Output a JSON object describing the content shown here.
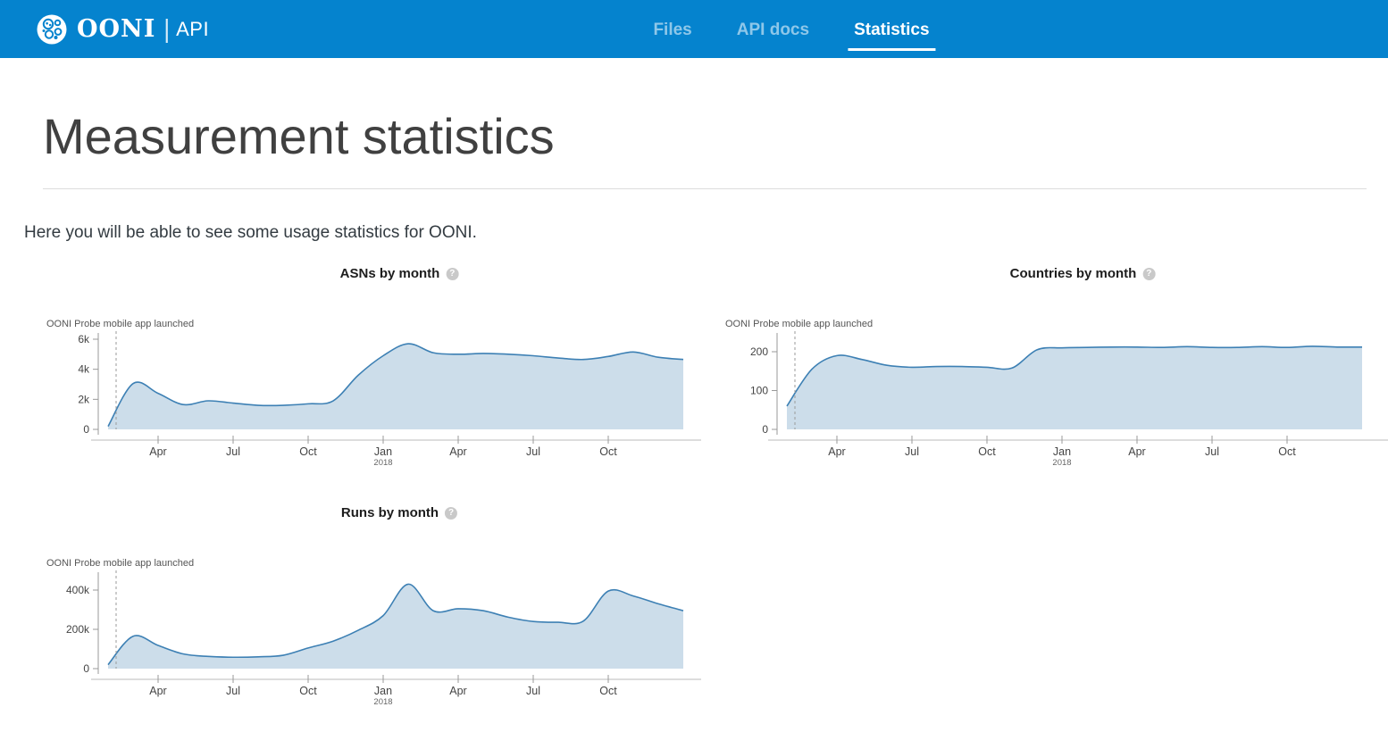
{
  "header": {
    "brand": {
      "name": "OONI",
      "separator": "|",
      "sub": "API"
    },
    "nav": [
      {
        "label": "Files",
        "active": false
      },
      {
        "label": "API docs",
        "active": false
      },
      {
        "label": "Statistics",
        "active": true
      }
    ]
  },
  "page": {
    "title": "Measurement statistics",
    "intro": "Here you will be able to see some usage statistics for OONI."
  },
  "icons": {
    "help_glyph": "?"
  },
  "colors": {
    "header_bg": "#0583CE",
    "chart_line": "#3D80B4",
    "chart_fill": "#CCDDEA",
    "nav_active_underline": "#FFFFFF"
  },
  "chart_data": [
    {
      "id": "asns",
      "type": "area",
      "title": "ASNs by month",
      "annotation": "OONI Probe mobile app launched",
      "x_months": [
        "2017-02",
        "2017-03",
        "2017-04",
        "2017-05",
        "2017-06",
        "2017-07",
        "2017-08",
        "2017-09",
        "2017-10",
        "2017-11",
        "2017-12",
        "2018-01",
        "2018-02",
        "2018-03",
        "2018-04",
        "2018-05",
        "2018-06",
        "2018-07",
        "2018-08",
        "2018-09",
        "2018-10",
        "2018-11",
        "2018-12",
        "2019-01"
      ],
      "values": [
        200,
        3050,
        2400,
        1650,
        1900,
        1750,
        1600,
        1600,
        1700,
        1900,
        3600,
        4900,
        5700,
        5100,
        5000,
        5050,
        5000,
        4900,
        4750,
        4650,
        4850,
        5150,
        4800,
        4650
      ],
      "x_tick_labels": [
        "Apr",
        "Jul",
        "Oct",
        "Jan",
        "Apr",
        "Jul",
        "Oct"
      ],
      "x_year_label": "2018",
      "y_tick_labels": [
        "0",
        "2k",
        "4k",
        "6k"
      ],
      "y_tick_values": [
        0,
        2000,
        4000,
        6000
      ],
      "ylim": [
        0,
        6300
      ],
      "legend": "none",
      "grid": "off"
    },
    {
      "id": "countries",
      "type": "area",
      "title": "Countries by month",
      "annotation": "OONI Probe mobile app launched",
      "x_months": [
        "2017-02",
        "2017-03",
        "2017-04",
        "2017-05",
        "2017-06",
        "2017-07",
        "2017-08",
        "2017-09",
        "2017-10",
        "2017-11",
        "2017-12",
        "2018-01",
        "2018-02",
        "2018-03",
        "2018-04",
        "2018-05",
        "2018-06",
        "2018-07",
        "2018-08",
        "2018-09",
        "2018-10",
        "2018-11",
        "2018-12",
        "2019-01"
      ],
      "values": [
        60,
        155,
        190,
        180,
        165,
        160,
        162,
        162,
        160,
        158,
        205,
        210,
        211,
        212,
        212,
        211,
        213,
        211,
        211,
        213,
        211,
        214,
        212,
        212
      ],
      "x_tick_labels": [
        "Apr",
        "Jul",
        "Oct",
        "Jan",
        "Apr",
        "Jul",
        "Oct"
      ],
      "x_year_label": "2018",
      "y_tick_labels": [
        "0",
        "100",
        "200"
      ],
      "y_tick_values": [
        0,
        100,
        200
      ],
      "ylim": [
        0,
        245
      ],
      "legend": "none",
      "grid": "off"
    },
    {
      "id": "runs",
      "type": "area",
      "title": "Runs by month",
      "annotation": "OONI Probe mobile app launched",
      "x_months": [
        "2017-02",
        "2017-03",
        "2017-04",
        "2017-05",
        "2017-06",
        "2017-07",
        "2017-08",
        "2017-09",
        "2017-10",
        "2017-11",
        "2017-12",
        "2018-01",
        "2018-02",
        "2018-03",
        "2018-04",
        "2018-05",
        "2018-06",
        "2018-07",
        "2018-08",
        "2018-09",
        "2018-10",
        "2018-11",
        "2018-12",
        "2019-01"
      ],
      "values": [
        20000,
        165000,
        118000,
        75000,
        62000,
        58000,
        60000,
        68000,
        105000,
        140000,
        195000,
        270000,
        430000,
        295000,
        305000,
        295000,
        262000,
        240000,
        236000,
        242000,
        395000,
        370000,
        330000,
        295000
      ],
      "x_tick_labels": [
        "Apr",
        "Jul",
        "Oct",
        "Jan",
        "Apr",
        "Jul",
        "Oct"
      ],
      "x_year_label": "2018",
      "y_tick_labels": [
        "0",
        "200k",
        "400k"
      ],
      "y_tick_values": [
        0,
        200000,
        400000
      ],
      "ylim": [
        0,
        480000
      ],
      "legend": "none",
      "grid": "off"
    }
  ]
}
